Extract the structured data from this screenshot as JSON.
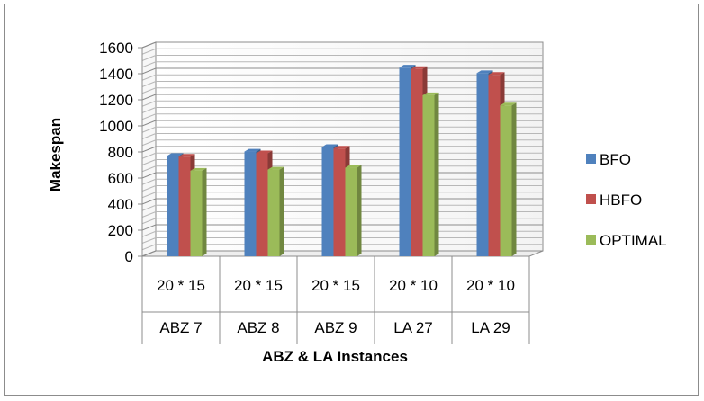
{
  "chart_data": {
    "type": "bar",
    "categories": [
      {
        "top": "20 * 15",
        "bottom": "ABZ 7"
      },
      {
        "top": "20 * 15",
        "bottom": "ABZ 8"
      },
      {
        "top": "20 * 15",
        "bottom": "ABZ 9"
      },
      {
        "top": "20 * 10",
        "bottom": "LA 27"
      },
      {
        "top": "20 * 10",
        "bottom": "LA 29"
      }
    ],
    "series": [
      {
        "name": "BFO",
        "color": "#4f81bd",
        "values": [
          770,
          803,
          838,
          1447,
          1404
        ]
      },
      {
        "name": "HBFO",
        "color": "#c0504d",
        "values": [
          764,
          790,
          826,
          1436,
          1391
        ]
      },
      {
        "name": "OPTIMAL",
        "color": "#9bbb59",
        "values": [
          656,
          665,
          679,
          1235,
          1157
        ]
      }
    ],
    "title": "",
    "xlabel": "ABZ & LA Instances",
    "ylabel": "Makespan",
    "ylim": [
      0,
      1600
    ],
    "yticks": [
      0,
      200,
      400,
      600,
      800,
      1000,
      1200,
      1400,
      1600
    ],
    "grid": true,
    "legend_position": "right",
    "style": "3d-clustered-column"
  }
}
